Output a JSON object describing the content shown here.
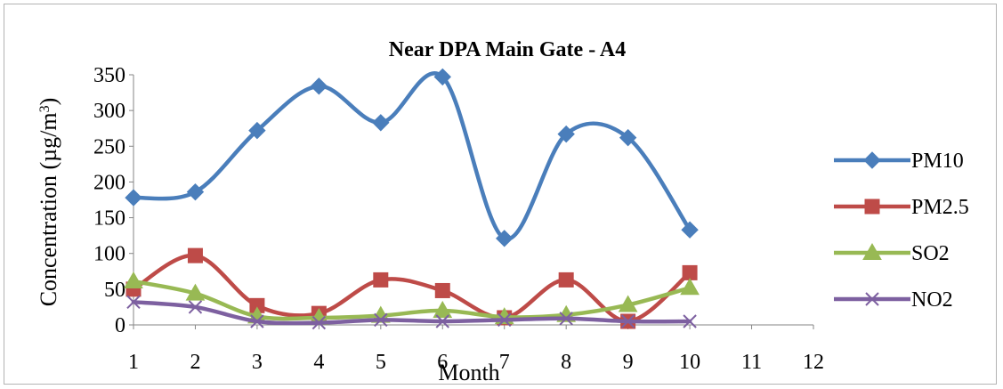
{
  "chart_data": {
    "type": "line",
    "title": "Near DPA Main Gate - A4",
    "xlabel": "Month",
    "ylabel": "Concentration (µg/m",
    "ylabel_sup": "3",
    "ylabel_end": ")",
    "x": [
      1,
      2,
      3,
      4,
      5,
      6,
      7,
      8,
      9,
      10
    ],
    "xticks": [
      "1",
      "2",
      "3",
      "4",
      "5",
      "6",
      "7",
      "8",
      "9",
      "10",
      "11",
      "12"
    ],
    "xlim": [
      1,
      12
    ],
    "yticks": [
      "0",
      "50",
      "100",
      "150",
      "200",
      "250",
      "300",
      "350"
    ],
    "ylim": [
      0,
      350
    ],
    "grid": false,
    "smooth": true,
    "legend_position": "right",
    "series": [
      {
        "name": "PM10",
        "color": "#4A7EBB",
        "marker": "diamond",
        "values": [
          178,
          186,
          272,
          334,
          283,
          347,
          121,
          267,
          262,
          133
        ]
      },
      {
        "name": "PM2.5",
        "color": "#BE4B48",
        "marker": "square",
        "values": [
          50,
          97,
          27,
          16,
          63,
          48,
          10,
          63,
          5,
          73
        ]
      },
      {
        "name": "SO2",
        "color": "#98B954",
        "marker": "triangle",
        "values": [
          61,
          44,
          12,
          10,
          13,
          20,
          11,
          14,
          28,
          52
        ]
      },
      {
        "name": "NO2",
        "color": "#7D60A0",
        "marker": "x",
        "values": [
          32,
          25,
          5,
          3,
          7,
          5,
          7,
          9,
          5,
          5
        ]
      }
    ]
  }
}
